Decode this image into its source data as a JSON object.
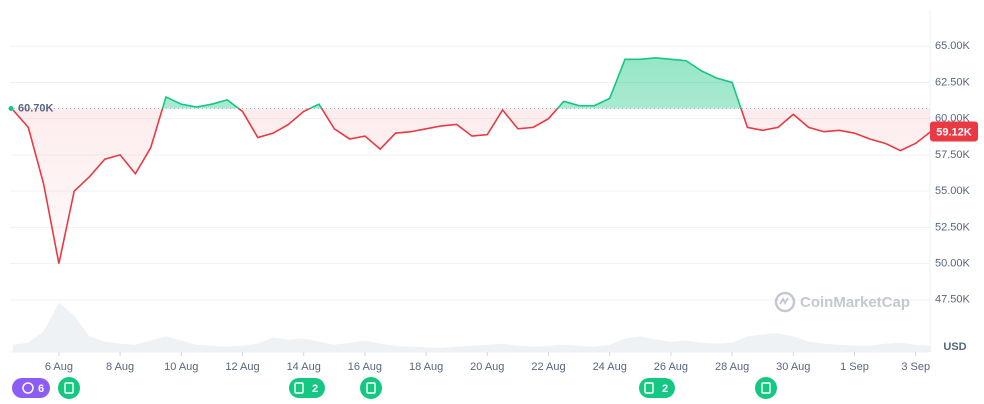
{
  "chart_data": {
    "type": "line",
    "categories": [
      null,
      null,
      null,
      "6 Aug",
      null,
      null,
      null,
      "8 Aug",
      null,
      null,
      null,
      "10 Aug",
      null,
      null,
      null,
      "12 Aug",
      null,
      null,
      null,
      "14 Aug",
      null,
      null,
      null,
      "16 Aug",
      null,
      null,
      null,
      "18 Aug",
      null,
      null,
      null,
      "20 Aug",
      null,
      null,
      null,
      "22 Aug",
      null,
      null,
      null,
      "24 Aug",
      null,
      null,
      null,
      "26 Aug",
      null,
      null,
      null,
      "28 Aug",
      null,
      null,
      null,
      "30 Aug",
      null,
      null,
      null,
      "1 Sep",
      null,
      null,
      null,
      "3 Sep",
      null
    ],
    "series": [
      {
        "name": "Price",
        "values": [
          60.6,
          59.4,
          55.5,
          50.0,
          55.0,
          56.0,
          57.2,
          57.5,
          56.2,
          58.0,
          61.5,
          61.0,
          60.8,
          61.0,
          61.3,
          60.5,
          58.7,
          59.0,
          59.6,
          60.5,
          61.0,
          59.3,
          58.6,
          58.8,
          57.9,
          59.0,
          59.1,
          59.3,
          59.5,
          59.6,
          58.8,
          58.9,
          60.6,
          59.3,
          59.4,
          60.0,
          61.2,
          60.9,
          60.9,
          61.4,
          64.1,
          64.1,
          64.2,
          64.1,
          64.0,
          63.3,
          62.8,
          62.5,
          59.4,
          59.2,
          59.4,
          60.3,
          59.4,
          59.1,
          59.2,
          59.0,
          58.6,
          58.3,
          57.8,
          58.3,
          59.12
        ]
      },
      {
        "name": "Volume",
        "values": [
          14,
          18,
          40,
          95,
          70,
          30,
          20,
          16,
          14,
          22,
          30,
          22,
          14,
          12,
          10,
          12,
          16,
          28,
          24,
          26,
          20,
          14,
          18,
          22,
          16,
          12,
          10,
          9,
          8,
          10,
          12,
          14,
          16,
          12,
          10,
          12,
          14,
          12,
          10,
          14,
          26,
          30,
          24,
          20,
          22,
          18,
          16,
          18,
          30,
          34,
          36,
          30,
          20,
          16,
          14,
          12,
          12,
          16,
          18,
          14,
          12
        ]
      }
    ],
    "up_color": "#16c784",
    "down_color": "#ea3943",
    "baseline": 60.7,
    "baseline_label": "60.70K",
    "current_label": "59.12K",
    "ylim": [
      43.9,
      67.5
    ],
    "yticks": [
      {
        "value": 47.5,
        "label": "47.50K"
      },
      {
        "value": 50,
        "label": "50.00K"
      },
      {
        "value": 52.5,
        "label": "52.50K"
      },
      {
        "value": 55,
        "label": "55.00K"
      },
      {
        "value": 57.5,
        "label": "57.50K"
      },
      {
        "value": 60,
        "label": "60.00K"
      },
      {
        "value": 62.5,
        "label": "62.50K"
      },
      {
        "value": 65,
        "label": "65.00K"
      }
    ],
    "currency": "USD",
    "watermark": "CoinMarketCap",
    "badges": [
      "6",
      "2",
      "2"
    ],
    "grid": true
  }
}
